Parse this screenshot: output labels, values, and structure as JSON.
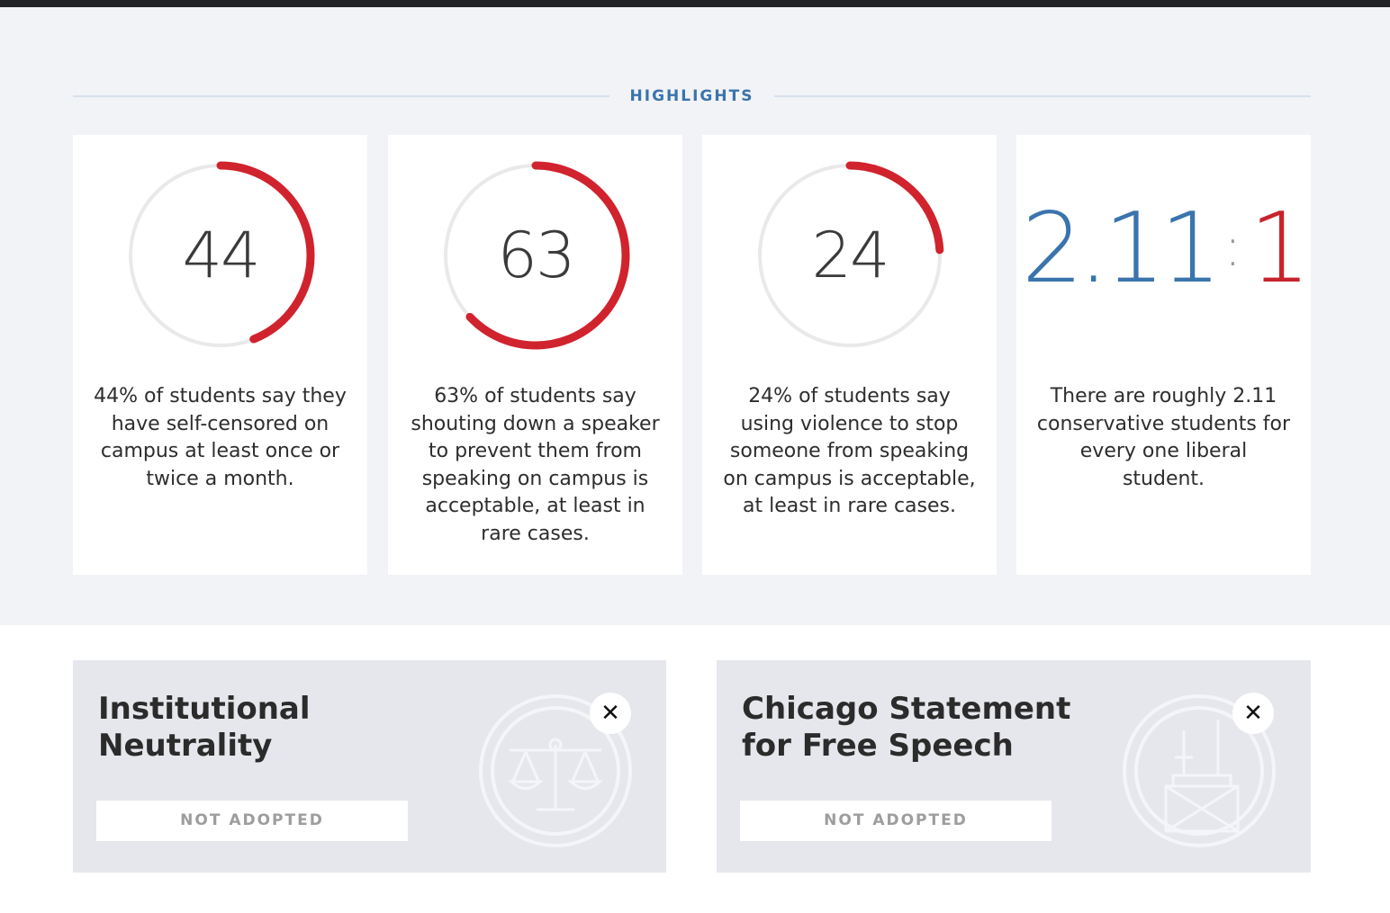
{
  "highlights": {
    "title": "HIGHLIGHTS",
    "cards": [
      {
        "number": "44",
        "percent": 44,
        "text": "44% of students say they have self-censored on campus at least once or twice a month."
      },
      {
        "number": "63",
        "percent": 63,
        "text": "63% of students say shouting down a speaker to prevent them from speaking on campus is acceptable, at least in rare cases."
      },
      {
        "number": "24",
        "percent": 24,
        "text": "24% of students say using violence to stop someone from speaking on campus is acceptable, at least in rare cases."
      }
    ],
    "ratio": {
      "left": "2.11",
      "separator": ":",
      "right": "1",
      "text": "There are roughly 2.11 conservative students for every one liberal student."
    }
  },
  "policies": [
    {
      "title": "Institutional Neutrality",
      "status": "NOT ADOPTED",
      "badge": "✕",
      "icon": "scales-of-justice-icon"
    },
    {
      "title": "Chicago Statement for Free Speech",
      "status": "NOT ADOPTED",
      "badge": "✕",
      "icon": "chicago-building-icon"
    }
  ],
  "colors": {
    "accent_red": "#d0232d",
    "ring_track": "#e9e9ea",
    "blue": "#3a74ad",
    "section_bg": "#f2f3f7",
    "card_bg": "#ffffff",
    "policy_bg": "#e6e7ec"
  }
}
